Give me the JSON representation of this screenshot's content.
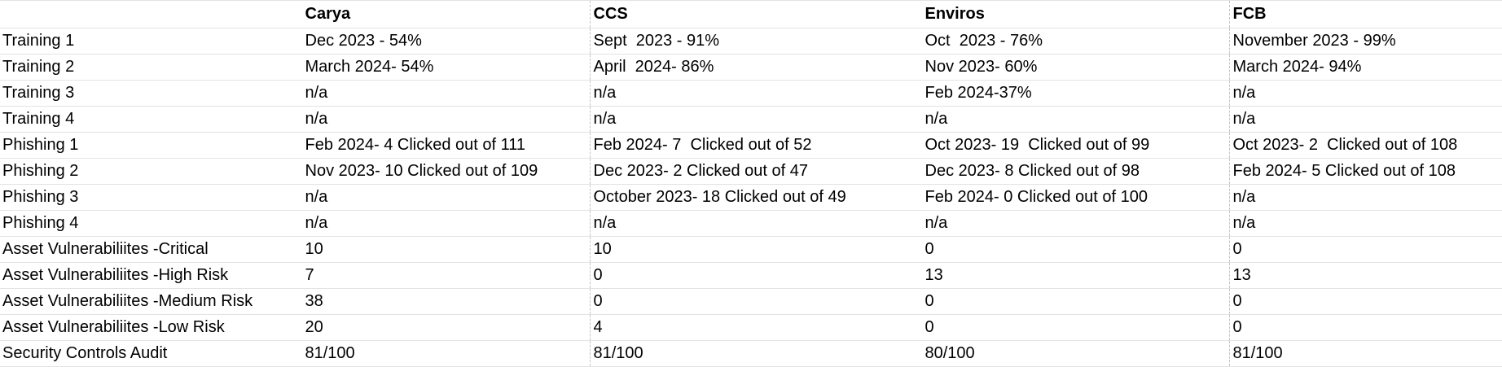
{
  "columns": [
    "",
    "Carya",
    "CCS",
    "Enviros",
    "FCB"
  ],
  "rows": [
    [
      "Training 1",
      "Dec 2023 - 54%",
      "Sept  2023 - 91%",
      "Oct  2023 - 76%",
      "November 2023 - 99%"
    ],
    [
      "Training 2",
      "March 2024- 54%",
      "April  2024- 86%",
      "Nov 2023- 60%",
      "March 2024- 94%"
    ],
    [
      "Training 3",
      "n/a",
      "n/a",
      "Feb 2024-37%",
      "n/a"
    ],
    [
      "Training 4",
      "n/a",
      "n/a",
      "n/a",
      "n/a"
    ],
    [
      "Phishing 1",
      "Feb 2024- 4 Clicked out of 111",
      "Feb 2024- 7  Clicked out of 52",
      "Oct 2023- 19  Clicked out of 99",
      "Oct 2023- 2  Clicked out of 108"
    ],
    [
      "Phishing 2",
      "Nov 2023- 10 Clicked out of 109",
      "Dec 2023- 2 Clicked out of 47",
      "Dec 2023- 8 Clicked out of 98",
      "Feb 2024- 5 Clicked out of 108"
    ],
    [
      "Phishing 3",
      "n/a",
      "October 2023- 18 Clicked out of 49",
      "Feb 2024- 0 Clicked out of 100",
      "n/a"
    ],
    [
      "Phishing 4",
      "n/a",
      "n/a",
      "n/a",
      "n/a"
    ],
    [
      "Asset Vulnerabiliites -Critical",
      "10",
      "10",
      "0",
      "0"
    ],
    [
      "Asset Vulnerabiliites -High Risk",
      "7",
      "0",
      "13",
      "13"
    ],
    [
      "Asset Vulnerabiliites -Medium Risk",
      "38",
      "0",
      "0",
      "0"
    ],
    [
      "Asset Vulnerabiliites -Low Risk",
      "20",
      "4",
      "0",
      "0"
    ],
    [
      "Security Controls Audit",
      "81/100",
      "81/100",
      "80/100",
      "81/100"
    ]
  ]
}
